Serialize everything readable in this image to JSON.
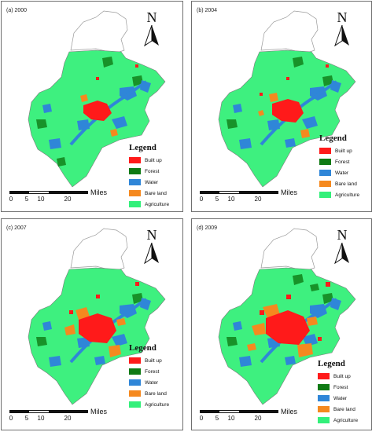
{
  "panels": [
    {
      "caption": "(a) 2000"
    },
    {
      "caption": "(b) 2004"
    },
    {
      "caption": "(c) 2007"
    },
    {
      "caption": "(d) 2009"
    }
  ],
  "north_label": "N",
  "legend": {
    "title": "Legend",
    "items": [
      {
        "label": "Built up",
        "color": "#ff1a1a"
      },
      {
        "label": "Forest",
        "color": "#0f7a14"
      },
      {
        "label": "Water",
        "color": "#2f86d8"
      },
      {
        "label": "Bare land",
        "color": "#f5891f"
      },
      {
        "label": "Agriculture",
        "color": "#33f07a"
      }
    ]
  },
  "scale": {
    "unit": "Miles",
    "ticks": [
      "0",
      "5",
      "10",
      "20"
    ]
  },
  "colors": {
    "agriculture": "#3ef07f",
    "outline": "#8a8a8a",
    "water": "#2f86d8",
    "builtup": "#ff1a1a",
    "forest": "#0f7a14",
    "bareland": "#f5891f"
  }
}
